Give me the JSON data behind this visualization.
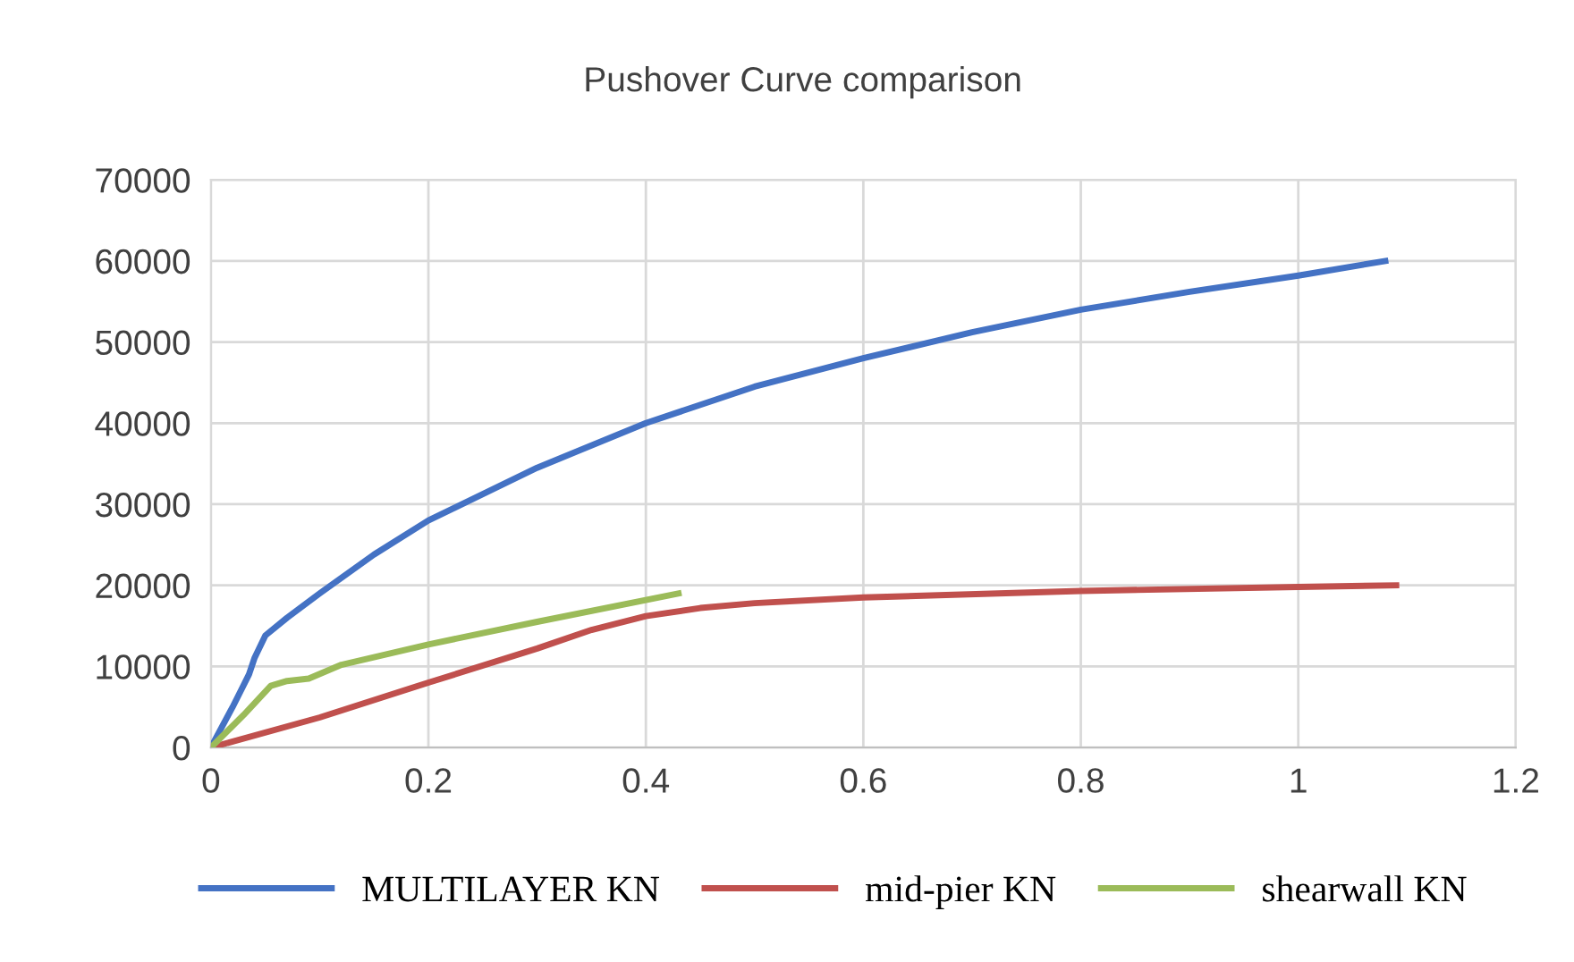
{
  "chart_data": {
    "type": "line",
    "title": "Pushover Curve comparison",
    "xlim": [
      0,
      1.2
    ],
    "xticks": [
      0,
      0.2,
      0.4,
      0.6,
      0.8,
      1,
      1.2
    ],
    "ylim": [
      0,
      70000
    ],
    "yticks": [
      0,
      10000,
      20000,
      30000,
      40000,
      50000,
      60000,
      70000
    ],
    "grid": true,
    "legend": "bottom",
    "marker": "none",
    "line_style": "solid",
    "series": [
      {
        "name": "MULTILAYER KN",
        "color": "#4472c4",
        "x": [
          0,
          0.02,
          0.035,
          0.04,
          0.05,
          0.07,
          0.1,
          0.15,
          0.2,
          0.3,
          0.4,
          0.5,
          0.6,
          0.7,
          0.8,
          0.9,
          1.0,
          1.08
        ],
        "values": [
          0,
          5000,
          9000,
          11000,
          13800,
          16000,
          19000,
          23800,
          28000,
          34500,
          40000,
          44500,
          48000,
          51200,
          54000,
          56200,
          58200,
          60000
        ]
      },
      {
        "name": "mid-pier KN",
        "color": "#c0504d",
        "x": [
          0,
          0.1,
          0.2,
          0.3,
          0.35,
          0.4,
          0.45,
          0.5,
          0.6,
          0.8,
          1.0,
          1.09
        ],
        "values": [
          0,
          3700,
          8000,
          12200,
          14500,
          16200,
          17200,
          17800,
          18500,
          19300,
          19800,
          20000
        ]
      },
      {
        "name": "shearwall KN",
        "color": "#9bbb59",
        "x": [
          0,
          0.03,
          0.055,
          0.07,
          0.09,
          0.12,
          0.2,
          0.3,
          0.43
        ],
        "values": [
          0,
          4000,
          7600,
          8200,
          8500,
          10200,
          12700,
          15500,
          19000
        ]
      }
    ]
  }
}
